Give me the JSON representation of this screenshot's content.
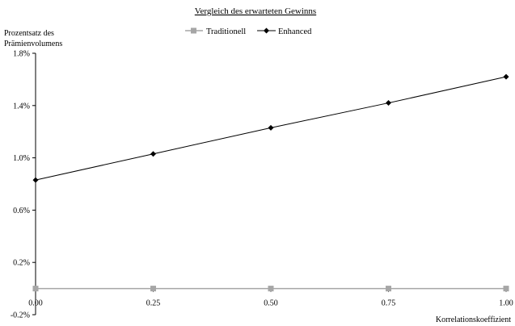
{
  "chart_data": {
    "type": "line",
    "title": "Vergleich des erwarteten Gewinns",
    "ylabel": [
      "Prozentsatz des",
      "Prämienvolumens"
    ],
    "xlabel": "Korrelationskoeffizient",
    "x": [
      0.0,
      0.25,
      0.5,
      0.75,
      1.0
    ],
    "x_tick_labels": [
      "0.00",
      "0.25",
      "0.50",
      "0.75",
      "1.00"
    ],
    "y_tick_labels": [
      "-0.2%",
      "0.2%",
      "0.6%",
      "1.0%",
      "1.4%",
      "1.8%"
    ],
    "y_ticks": [
      -0.2,
      0.2,
      0.6,
      1.0,
      1.4,
      1.8
    ],
    "xlim": [
      0,
      1
    ],
    "ylim": [
      -0.2,
      1.8
    ],
    "grid": false,
    "legend_position": "top-center",
    "series": [
      {
        "name": "Traditionell",
        "values": [
          0.0,
          0.0,
          0.0,
          0.0,
          0.0
        ],
        "color": "#a6a6a6",
        "marker": "square"
      },
      {
        "name": "Enhanced",
        "values": [
          0.83,
          1.03,
          1.23,
          1.42,
          1.62
        ],
        "color": "#000000",
        "marker": "diamond"
      }
    ]
  }
}
